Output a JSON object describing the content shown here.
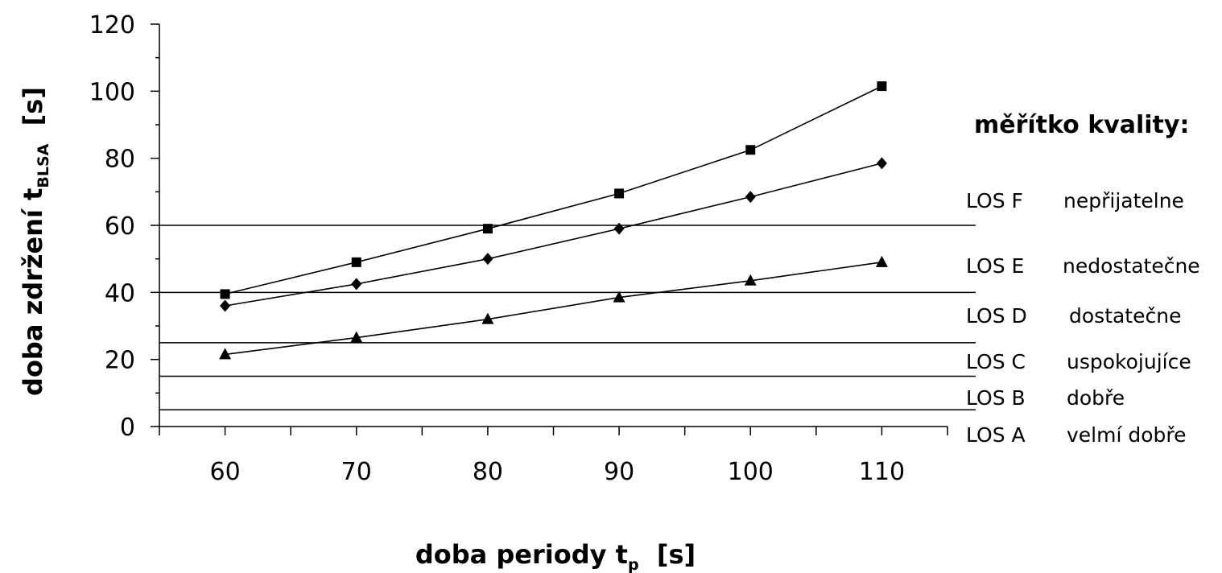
{
  "chart_data": {
    "type": "line",
    "x": [
      60,
      70,
      80,
      90,
      100,
      110
    ],
    "xlim": [
      55,
      115
    ],
    "ylim": [
      0,
      120
    ],
    "xticks": [
      60,
      70,
      80,
      90,
      100,
      110
    ],
    "yticks": [
      0,
      20,
      40,
      60,
      80,
      100,
      120
    ],
    "xlabel": {
      "main": "doba periody t",
      "sub": "p",
      "unit": "  [s]"
    },
    "ylabel": {
      "main": "doba zdržení t",
      "sub": "BLSA",
      "unit": "  [s]"
    },
    "grid": false,
    "series": [
      {
        "marker": "square",
        "values": [
          39.5,
          49,
          59,
          69.5,
          82.5,
          101.5
        ]
      },
      {
        "marker": "diamond",
        "values": [
          36,
          42.5,
          50,
          59,
          68.5,
          78.5
        ]
      },
      {
        "marker": "triangle",
        "values": [
          21.5,
          26.5,
          32,
          38.5,
          43.5,
          49
        ]
      }
    ],
    "thresholds": [
      5,
      15,
      25,
      40,
      60
    ],
    "legend": {
      "title": "měřítko kvality:",
      "levels": [
        {
          "code": "LOS F",
          "label": "nepřijatelne"
        },
        {
          "code": "LOS E",
          "label": "nedostatečne"
        },
        {
          "code": "LOS D",
          "label": "dostatečne"
        },
        {
          "code": "LOS C",
          "label": "uspokojujíce"
        },
        {
          "code": "LOS B",
          "label": "dobře"
        },
        {
          "code": "LOS A",
          "label": "velmí dobře"
        }
      ]
    }
  }
}
